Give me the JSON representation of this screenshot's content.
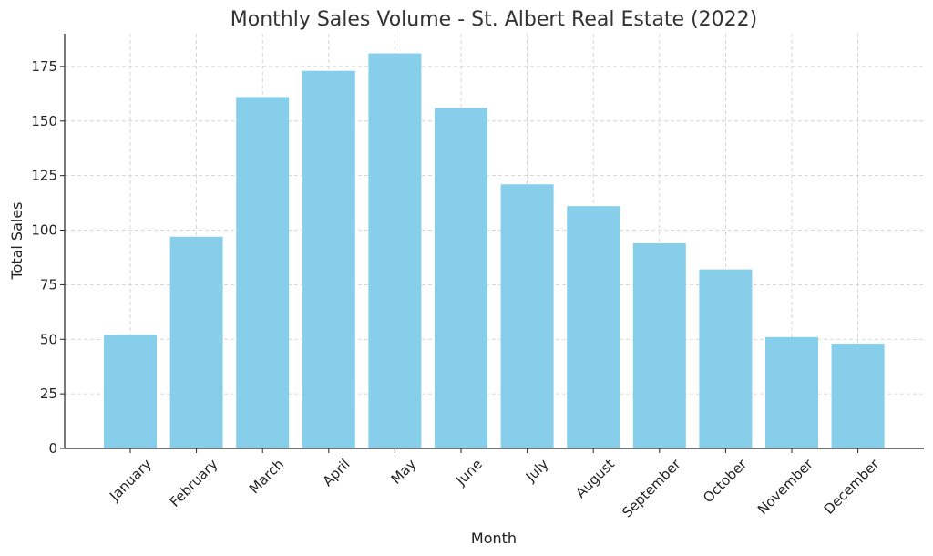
{
  "chart_data": {
    "type": "bar",
    "title": "Monthly Sales Volume - St. Albert Real Estate (2022)",
    "xlabel": "Month",
    "ylabel": "Total Sales",
    "categories": [
      "January",
      "February",
      "March",
      "April",
      "May",
      "June",
      "July",
      "August",
      "September",
      "October",
      "November",
      "December"
    ],
    "values": [
      52,
      97,
      161,
      173,
      181,
      156,
      121,
      111,
      94,
      82,
      51,
      48
    ],
    "ylim": [
      0,
      190
    ],
    "yticks": [
      0,
      25,
      50,
      75,
      100,
      125,
      150,
      175
    ],
    "grid": true,
    "bar_color": "#87CEEB",
    "x_tick_rotation": "45 degrees"
  }
}
